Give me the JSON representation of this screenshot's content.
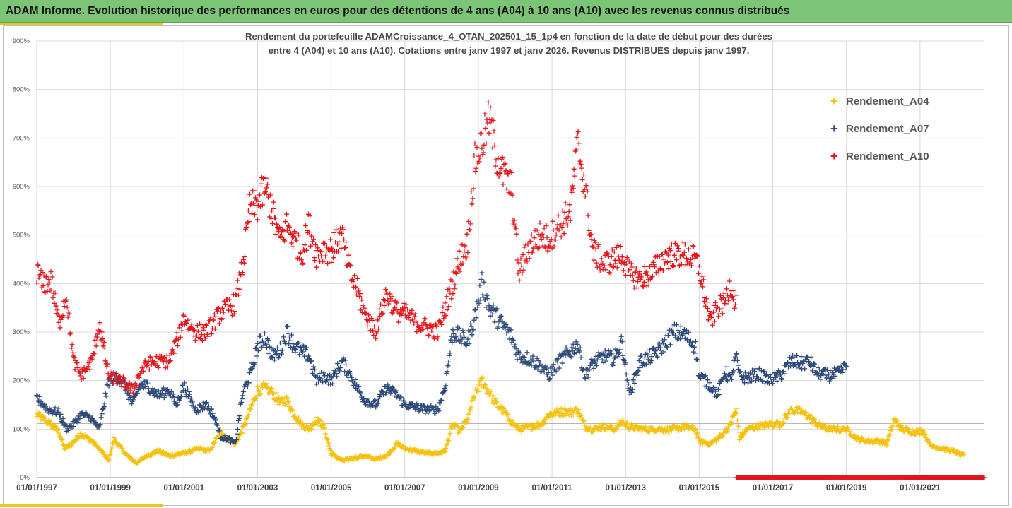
{
  "banner": {
    "title": "ADAM Informe. Evolution historique des performances en euros pour des détentions de 4 ans (A04) à 10 ans (A10) avec les revenus connus distribués"
  },
  "chart_data": {
    "type": "scatter",
    "title_line1": "Rendement du portefeuille ADAMCroissance_4_OTAN_202501_15_1p4  en fonction de la date de début pour des durées",
    "title_line2": "entre 4 (A04) et 10 ans (A10). Cotations entre janv 1997 et janv 2026. Revenus DISTRIBUES depuis janv 1997.",
    "xlabel": "",
    "ylabel": "",
    "x_range": [
      1997.0,
      2022.75
    ],
    "ylim": [
      0,
      900
    ],
    "y_ticks": [
      "0%",
      "100%",
      "200%",
      "300%",
      "400%",
      "500%",
      "600%",
      "700%",
      "800%",
      "900%"
    ],
    "x_tick_labels": [
      "01/01/1997",
      "01/01/1999",
      "01/01/2001",
      "01/01/2003",
      "01/01/2005",
      "01/01/2007",
      "01/01/2009",
      "01/01/2011",
      "01/01/2013",
      "01/01/2015",
      "01/01/2017",
      "01/01/2019",
      "01/01/2021"
    ],
    "x_tick_years": [
      1997,
      1999,
      2001,
      2003,
      2005,
      2007,
      2009,
      2011,
      2013,
      2015,
      2017,
      2019,
      2021
    ],
    "grid": true,
    "legend_position": "right",
    "series": [
      {
        "name": "Rendement_A04",
        "color": "#f4c20d",
        "x_start": 1997.0,
        "x_end": 2022.2,
        "keypoints": [
          [
            1997.0,
            130
          ],
          [
            1997.3,
            115
          ],
          [
            1997.6,
            95
          ],
          [
            1997.75,
            60
          ],
          [
            1997.95,
            70
          ],
          [
            1998.2,
            90
          ],
          [
            1998.5,
            75
          ],
          [
            1998.75,
            55
          ],
          [
            1998.95,
            35
          ],
          [
            1999.1,
            80
          ],
          [
            1999.4,
            50
          ],
          [
            1999.7,
            30
          ],
          [
            2000.0,
            45
          ],
          [
            2000.3,
            55
          ],
          [
            2000.6,
            45
          ],
          [
            2001.0,
            50
          ],
          [
            2001.4,
            60
          ],
          [
            2001.7,
            55
          ],
          [
            2002.0,
            95
          ],
          [
            2002.2,
            80
          ],
          [
            2002.4,
            70
          ],
          [
            2002.6,
            100
          ],
          [
            2002.8,
            140
          ],
          [
            2003.0,
            180
          ],
          [
            2003.2,
            185
          ],
          [
            2003.4,
            175
          ],
          [
            2003.6,
            155
          ],
          [
            2003.8,
            160
          ],
          [
            2004.0,
            130
          ],
          [
            2004.2,
            110
          ],
          [
            2004.4,
            100
          ],
          [
            2004.6,
            120
          ],
          [
            2004.8,
            105
          ],
          [
            2005.0,
            50
          ],
          [
            2005.3,
            35
          ],
          [
            2005.6,
            40
          ],
          [
            2005.9,
            45
          ],
          [
            2006.2,
            38
          ],
          [
            2006.5,
            45
          ],
          [
            2006.8,
            70
          ],
          [
            2007.0,
            60
          ],
          [
            2007.3,
            55
          ],
          [
            2007.6,
            50
          ],
          [
            2007.9,
            50
          ],
          [
            2008.1,
            55
          ],
          [
            2008.3,
            110
          ],
          [
            2008.5,
            95
          ],
          [
            2008.7,
            120
          ],
          [
            2008.9,
            170
          ],
          [
            2009.1,
            200
          ],
          [
            2009.3,
            175
          ],
          [
            2009.5,
            150
          ],
          [
            2009.7,
            135
          ],
          [
            2009.9,
            115
          ],
          [
            2010.1,
            100
          ],
          [
            2010.4,
            105
          ],
          [
            2010.7,
            110
          ],
          [
            2010.9,
            130
          ],
          [
            2011.2,
            135
          ],
          [
            2011.5,
            135
          ],
          [
            2011.7,
            140
          ],
          [
            2011.9,
            105
          ],
          [
            2012.1,
            100
          ],
          [
            2012.4,
            105
          ],
          [
            2012.7,
            100
          ],
          [
            2012.9,
            115
          ],
          [
            2013.1,
            105
          ],
          [
            2013.4,
            100
          ],
          [
            2013.7,
            100
          ],
          [
            2014.0,
            100
          ],
          [
            2014.3,
            100
          ],
          [
            2014.6,
            105
          ],
          [
            2014.9,
            100
          ],
          [
            2015.0,
            75
          ],
          [
            2015.3,
            70
          ],
          [
            2015.5,
            80
          ],
          [
            2015.7,
            95
          ],
          [
            2015.85,
            110
          ],
          [
            2016.0,
            140
          ],
          [
            2016.1,
            80
          ],
          [
            2016.3,
            100
          ],
          [
            2016.6,
            105
          ],
          [
            2016.9,
            110
          ],
          [
            2017.2,
            110
          ],
          [
            2017.5,
            140
          ],
          [
            2017.8,
            135
          ],
          [
            2018.0,
            125
          ],
          [
            2018.2,
            110
          ],
          [
            2018.5,
            100
          ],
          [
            2018.8,
            100
          ],
          [
            2019.0,
            100
          ],
          [
            2019.3,
            80
          ],
          [
            2019.6,
            75
          ],
          [
            2019.9,
            75
          ],
          [
            2020.1,
            70
          ],
          [
            2020.3,
            120
          ],
          [
            2020.5,
            100
          ],
          [
            2020.8,
            95
          ],
          [
            2021.1,
            95
          ],
          [
            2021.3,
            65
          ],
          [
            2021.6,
            60
          ],
          [
            2021.9,
            55
          ],
          [
            2022.2,
            45
          ]
        ]
      },
      {
        "name": "Rendement_A07",
        "color": "#2e4a7a",
        "x_start": 1997.0,
        "x_end": 2019.0,
        "keypoints": [
          [
            1997.0,
            165
          ],
          [
            1997.3,
            140
          ],
          [
            1997.6,
            135
          ],
          [
            1997.8,
            100
          ],
          [
            1998.0,
            110
          ],
          [
            1998.2,
            130
          ],
          [
            1998.45,
            125
          ],
          [
            1998.7,
            100
          ],
          [
            1998.95,
            200
          ],
          [
            1999.2,
            210
          ],
          [
            1999.4,
            190
          ],
          [
            1999.6,
            150
          ],
          [
            1999.8,
            190
          ],
          [
            2000.0,
            190
          ],
          [
            2000.3,
            170
          ],
          [
            2000.6,
            180
          ],
          [
            2000.8,
            150
          ],
          [
            2001.0,
            190
          ],
          [
            2001.3,
            140
          ],
          [
            2001.6,
            150
          ],
          [
            2001.8,
            130
          ],
          [
            2002.0,
            85
          ],
          [
            2002.2,
            80
          ],
          [
            2002.4,
            70
          ],
          [
            2002.6,
            175
          ],
          [
            2002.8,
            210
          ],
          [
            2003.0,
            270
          ],
          [
            2003.2,
            290
          ],
          [
            2003.4,
            250
          ],
          [
            2003.6,
            260
          ],
          [
            2003.8,
            300
          ],
          [
            2004.0,
            270
          ],
          [
            2004.2,
            260
          ],
          [
            2004.4,
            250
          ],
          [
            2004.6,
            200
          ],
          [
            2004.8,
            210
          ],
          [
            2005.0,
            200
          ],
          [
            2005.3,
            240
          ],
          [
            2005.6,
            200
          ],
          [
            2005.9,
            160
          ],
          [
            2006.2,
            150
          ],
          [
            2006.5,
            185
          ],
          [
            2006.8,
            170
          ],
          [
            2007.0,
            150
          ],
          [
            2007.3,
            145
          ],
          [
            2007.6,
            140
          ],
          [
            2007.9,
            140
          ],
          [
            2008.1,
            190
          ],
          [
            2008.3,
            300
          ],
          [
            2008.5,
            290
          ],
          [
            2008.7,
            280
          ],
          [
            2008.9,
            330
          ],
          [
            2009.1,
            400
          ],
          [
            2009.3,
            350
          ],
          [
            2009.5,
            330
          ],
          [
            2009.7,
            310
          ],
          [
            2009.9,
            290
          ],
          [
            2010.1,
            250
          ],
          [
            2010.4,
            245
          ],
          [
            2010.7,
            230
          ],
          [
            2010.9,
            210
          ],
          [
            2011.2,
            240
          ],
          [
            2011.5,
            260
          ],
          [
            2011.7,
            275
          ],
          [
            2011.9,
            210
          ],
          [
            2012.1,
            235
          ],
          [
            2012.4,
            250
          ],
          [
            2012.7,
            245
          ],
          [
            2012.9,
            280
          ],
          [
            2013.1,
            170
          ],
          [
            2013.4,
            240
          ],
          [
            2013.7,
            250
          ],
          [
            2014.0,
            270
          ],
          [
            2014.3,
            300
          ],
          [
            2014.6,
            295
          ],
          [
            2014.9,
            270
          ],
          [
            2015.0,
            210
          ],
          [
            2015.3,
            190
          ],
          [
            2015.5,
            170
          ],
          [
            2015.7,
            220
          ],
          [
            2015.85,
            200
          ],
          [
            2016.0,
            250
          ],
          [
            2016.1,
            210
          ],
          [
            2016.3,
            205
          ],
          [
            2016.6,
            215
          ],
          [
            2016.9,
            200
          ],
          [
            2017.2,
            210
          ],
          [
            2017.5,
            240
          ],
          [
            2017.8,
            235
          ],
          [
            2018.0,
            240
          ],
          [
            2018.2,
            215
          ],
          [
            2018.5,
            210
          ],
          [
            2018.8,
            215
          ],
          [
            2019.0,
            230
          ]
        ]
      },
      {
        "name": "Rendement_A10",
        "color": "#e3161b",
        "x_start": 1997.0,
        "x_end": 2016.0,
        "keypoints": [
          [
            1997.0,
            425
          ],
          [
            1997.15,
            400
          ],
          [
            1997.4,
            405
          ],
          [
            1997.6,
            315
          ],
          [
            1997.8,
            380
          ],
          [
            1998.0,
            240
          ],
          [
            1998.2,
            210
          ],
          [
            1998.5,
            240
          ],
          [
            1998.7,
            320
          ],
          [
            1998.95,
            210
          ],
          [
            1999.2,
            200
          ],
          [
            1999.4,
            195
          ],
          [
            1999.6,
            180
          ],
          [
            1999.8,
            215
          ],
          [
            2000.0,
            235
          ],
          [
            2000.3,
            240
          ],
          [
            2000.6,
            240
          ],
          [
            2000.8,
            280
          ],
          [
            2001.0,
            330
          ],
          [
            2001.3,
            300
          ],
          [
            2001.6,
            300
          ],
          [
            2001.8,
            320
          ],
          [
            2002.0,
            340
          ],
          [
            2002.2,
            350
          ],
          [
            2002.4,
            360
          ],
          [
            2002.6,
            440
          ],
          [
            2002.8,
            560
          ],
          [
            2003.0,
            560
          ],
          [
            2003.2,
            600
          ],
          [
            2003.4,
            550
          ],
          [
            2003.6,
            490
          ],
          [
            2003.8,
            520
          ],
          [
            2004.0,
            490
          ],
          [
            2004.2,
            460
          ],
          [
            2004.4,
            520
          ],
          [
            2004.6,
            460
          ],
          [
            2004.8,
            470
          ],
          [
            2005.0,
            470
          ],
          [
            2005.3,
            500
          ],
          [
            2005.5,
            420
          ],
          [
            2005.7,
            390
          ],
          [
            2005.9,
            340
          ],
          [
            2006.2,
            300
          ],
          [
            2006.5,
            380
          ],
          [
            2006.8,
            340
          ],
          [
            2007.0,
            340
          ],
          [
            2007.3,
            320
          ],
          [
            2007.6,
            310
          ],
          [
            2007.9,
            300
          ],
          [
            2008.1,
            350
          ],
          [
            2008.3,
            400
          ],
          [
            2008.5,
            450
          ],
          [
            2008.7,
            480
          ],
          [
            2008.9,
            650
          ],
          [
            2009.1,
            690
          ],
          [
            2009.3,
            740
          ],
          [
            2009.5,
            660
          ],
          [
            2009.7,
            620
          ],
          [
            2009.9,
            600
          ],
          [
            2010.1,
            420
          ],
          [
            2010.4,
            480
          ],
          [
            2010.7,
            500
          ],
          [
            2010.9,
            490
          ],
          [
            2011.2,
            520
          ],
          [
            2011.5,
            550
          ],
          [
            2011.7,
            690
          ],
          [
            2011.9,
            600
          ],
          [
            2012.1,
            470
          ],
          [
            2012.4,
            440
          ],
          [
            2012.7,
            450
          ],
          [
            2012.9,
            460
          ],
          [
            2013.1,
            420
          ],
          [
            2013.4,
            410
          ],
          [
            2013.7,
            420
          ],
          [
            2014.0,
            450
          ],
          [
            2014.3,
            460
          ],
          [
            2014.6,
            460
          ],
          [
            2014.9,
            450
          ],
          [
            2015.0,
            430
          ],
          [
            2015.3,
            320
          ],
          [
            2015.5,
            350
          ],
          [
            2015.7,
            360
          ],
          [
            2015.85,
            400
          ],
          [
            2016.0,
            360
          ]
        ]
      },
      {
        "name": "",
        "color": "#e3161b",
        "x_start": 2016.0,
        "x_end": 2022.75,
        "keypoints": [
          [
            2016.0,
            0
          ],
          [
            2022.75,
            0
          ]
        ]
      }
    ]
  }
}
